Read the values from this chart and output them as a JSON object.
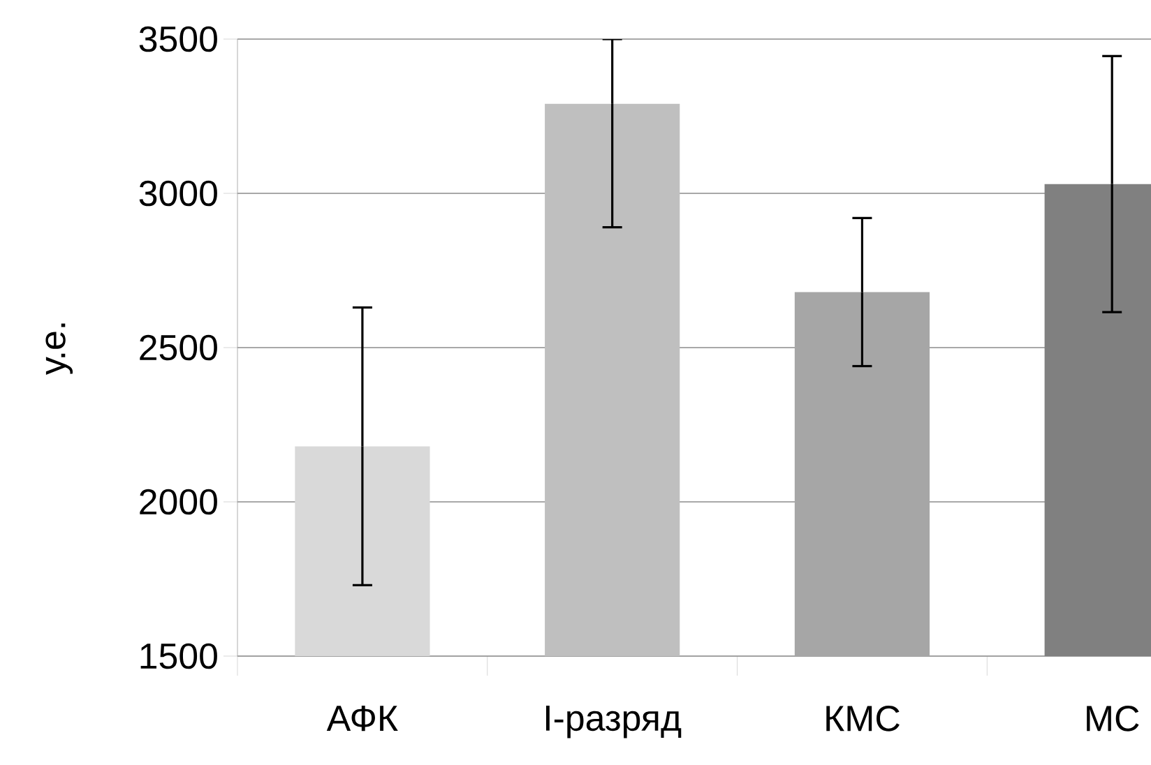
{
  "chart_data": {
    "type": "bar",
    "ylabel": "у.е.",
    "categories": [
      "АФК",
      "I-разряд",
      "КМС",
      "МС"
    ],
    "values": [
      2180,
      3290,
      2680,
      3030
    ],
    "colors": [
      "#d9d9d9",
      "#bfbfbf",
      "#a6a6a6",
      "#808080"
    ],
    "errors": [
      450,
      [
        2890,
        3500
      ],
      240,
      415
    ],
    "ylim": [
      1500,
      3500
    ],
    "yticks": [
      1500,
      2000,
      2500,
      3000,
      3500
    ],
    "grid": "y"
  }
}
